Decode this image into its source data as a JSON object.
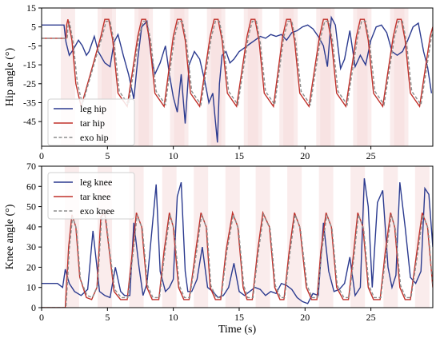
{
  "chart_data": [
    {
      "type": "line",
      "name": "hip-panel",
      "title": "",
      "xlabel": "",
      "ylabel": "Hip angle (°)",
      "xlim": [
        0,
        29.7
      ],
      "ylim": [
        -58,
        15
      ],
      "xticks": [
        0,
        5,
        10,
        15,
        20,
        25
      ],
      "yticks": [
        15,
        5,
        -5,
        -15,
        -25,
        -35,
        -45
      ],
      "legend": "lower-left",
      "grid": false,
      "series": [
        {
          "name": "leg hip",
          "color": "#2b3a8f",
          "dash": "solid",
          "x": [
            0,
            0.2,
            1.7,
            1.85,
            2.1,
            2.4,
            2.8,
            3.1,
            3.4,
            3.6,
            4.0,
            4.3,
            4.8,
            5.2,
            5.5,
            5.8,
            6.2,
            6.6,
            7.0,
            7.3,
            7.6,
            8.0,
            8.3,
            8.6,
            9.0,
            9.4,
            9.7,
            10.0,
            10.3,
            10.6,
            10.9,
            11.2,
            11.6,
            12.0,
            12.4,
            12.7,
            13.0,
            13.2,
            13.35,
            13.5,
            13.7,
            14.0,
            14.3,
            14.6,
            15.0,
            15.4,
            15.8,
            16.2,
            16.6,
            17.0,
            17.4,
            17.8,
            18.2,
            18.6,
            19.0,
            19.4,
            19.8,
            20.2,
            20.6,
            21.0,
            21.4,
            21.7,
            22.0,
            22.3,
            22.7,
            23.0,
            23.4,
            23.8,
            24.2,
            24.6,
            25.0,
            25.4,
            25.8,
            26.2,
            26.6,
            27.0,
            27.4,
            27.8,
            28.2,
            28.6,
            29.0,
            29.3,
            29.6
          ],
          "y": [
            6,
            6,
            6,
            -3,
            -10,
            -7,
            -2,
            -5,
            -10,
            -8,
            0,
            -8,
            -14,
            -16,
            -3,
            1,
            -10,
            -20,
            -33,
            -12,
            5,
            8,
            -10,
            -20,
            -14,
            -5,
            -20,
            -32,
            -40,
            -20,
            -46,
            -15,
            -8,
            -12,
            -24,
            -35,
            -30,
            -45,
            -56,
            -25,
            -10,
            -8,
            -14,
            -12,
            -8,
            -6,
            -4,
            -2,
            0,
            -1,
            1,
            0,
            1,
            -2,
            2,
            3,
            5,
            6,
            4,
            0,
            -5,
            -16,
            10,
            6,
            -17,
            -12,
            3,
            -16,
            -10,
            -15,
            -2,
            5,
            6,
            2,
            -8,
            -10,
            -8,
            -2,
            5,
            7,
            -8,
            -16,
            -30
          ]
        },
        {
          "name": "tar hip",
          "color": "#c0302a",
          "dash": "solid",
          "x": [
            0,
            1.85,
            1.9,
            2.0,
            2.3,
            2.6,
            3.0,
            3.7,
            4.5,
            4.8,
            5.1,
            5.4,
            5.8,
            6.5,
            7.3,
            7.6,
            7.9,
            8.2,
            8.6,
            9.3,
            10.0,
            10.3,
            10.6,
            10.9,
            11.3,
            12.0,
            12.8,
            13.1,
            13.4,
            13.7,
            14.1,
            14.8,
            15.6,
            15.9,
            16.2,
            16.5,
            16.9,
            17.6,
            18.3,
            18.6,
            18.9,
            19.2,
            19.6,
            20.3,
            21.1,
            21.4,
            21.7,
            22.0,
            22.4,
            23.1,
            23.9,
            24.2,
            24.5,
            24.8,
            25.2,
            25.9,
            26.7,
            27.0,
            27.3,
            27.6,
            28.0,
            28.7,
            29.5,
            29.7
          ],
          "y": [
            -1,
            -1,
            6,
            9,
            -2,
            -25,
            -37,
            -20,
            0,
            9,
            9,
            -2,
            -30,
            -37,
            0,
            9,
            9,
            -2,
            -30,
            -37,
            0,
            9,
            9,
            -2,
            -30,
            -37,
            0,
            9,
            9,
            -2,
            -30,
            -37,
            0,
            9,
            9,
            -2,
            -30,
            -37,
            0,
            9,
            9,
            -2,
            -30,
            -37,
            0,
            9,
            9,
            -2,
            -30,
            -37,
            0,
            9,
            9,
            -2,
            -30,
            -37,
            0,
            9,
            9,
            -2,
            -30,
            -37,
            0,
            5
          ]
        },
        {
          "name": "exo hip",
          "color": "#8c8c8c",
          "dash": "dashed",
          "x": [
            0,
            1.95,
            2.0,
            2.1,
            2.4,
            2.7,
            3.1,
            3.8,
            4.6,
            4.9,
            5.2,
            5.5,
            5.9,
            6.6,
            7.4,
            7.7,
            8.0,
            8.3,
            8.7,
            9.4,
            10.1,
            10.4,
            10.7,
            11.0,
            11.4,
            12.1,
            12.9,
            13.2,
            13.5,
            13.8,
            14.2,
            14.9,
            15.7,
            16.0,
            16.3,
            16.6,
            17.0,
            17.7,
            18.4,
            18.7,
            19.0,
            19.3,
            19.7,
            20.4,
            21.2,
            21.5,
            21.8,
            22.1,
            22.5,
            23.2,
            24.0,
            24.3,
            24.6,
            24.9,
            25.3,
            26.0,
            26.8,
            27.1,
            27.4,
            27.7,
            28.1,
            28.8,
            29.6,
            29.7
          ],
          "y": [
            -1,
            -1,
            5,
            8,
            -3,
            -24,
            -36,
            -19,
            0,
            8,
            8,
            -3,
            -29,
            -36,
            0,
            8,
            8,
            -3,
            -29,
            -36,
            0,
            8,
            8,
            -3,
            -29,
            -36,
            0,
            8,
            8,
            -3,
            -29,
            -36,
            0,
            8,
            8,
            -3,
            -29,
            -36,
            0,
            8,
            8,
            -3,
            -29,
            -36,
            0,
            8,
            8,
            -3,
            -29,
            -36,
            0,
            8,
            8,
            -3,
            -29,
            -36,
            0,
            8,
            8,
            -3,
            -29,
            -36,
            0,
            2
          ]
        }
      ]
    },
    {
      "type": "line",
      "name": "knee-panel",
      "title": "",
      "xlabel": "Time (s)",
      "ylabel": "Knee angle (°)",
      "xlim": [
        0,
        29.7
      ],
      "ylim": [
        0,
        70
      ],
      "xticks": [
        0,
        5,
        10,
        15,
        20,
        25
      ],
      "yticks": [
        0,
        10,
        20,
        30,
        40,
        50,
        60,
        70
      ],
      "legend": "upper-left",
      "grid": false,
      "series": [
        {
          "name": "leg knee",
          "color": "#2b3a8f",
          "dash": "solid",
          "x": [
            0,
            0.5,
            1.2,
            1.6,
            1.8,
            2.1,
            2.5,
            3.0,
            3.5,
            3.9,
            4.2,
            4.4,
            4.8,
            5.2,
            5.6,
            6.0,
            6.3,
            6.7,
            7.0,
            7.4,
            7.7,
            8.0,
            8.4,
            8.7,
            9.0,
            9.4,
            9.7,
            10.0,
            10.3,
            10.6,
            10.9,
            11.1,
            11.4,
            11.8,
            12.2,
            12.6,
            13.0,
            13.4,
            13.8,
            14.2,
            14.6,
            15.0,
            15.4,
            15.8,
            16.2,
            16.6,
            17.0,
            17.4,
            17.8,
            18.2,
            18.6,
            19.0,
            19.4,
            19.8,
            20.2,
            20.6,
            21.0,
            21.4,
            21.8,
            22.2,
            22.6,
            23.0,
            23.4,
            23.8,
            24.2,
            24.5,
            24.8,
            25.1,
            25.5,
            25.9,
            26.3,
            26.6,
            26.9,
            27.2,
            27.6,
            28.0,
            28.4,
            28.8,
            29.1,
            29.4,
            29.7
          ],
          "y": [
            12,
            12,
            12,
            10,
            19,
            12,
            8,
            6,
            9,
            38,
            20,
            8,
            6,
            5,
            20,
            8,
            6,
            6,
            42,
            20,
            6,
            12,
            40,
            61,
            18,
            8,
            10,
            14,
            55,
            62,
            18,
            8,
            8,
            14,
            30,
            10,
            8,
            5,
            6,
            10,
            22,
            8,
            6,
            8,
            10,
            9,
            6,
            8,
            7,
            12,
            11,
            9,
            5,
            3,
            2,
            7,
            6,
            42,
            18,
            8,
            9,
            12,
            25,
            6,
            10,
            64,
            50,
            10,
            52,
            58,
            20,
            10,
            16,
            62,
            40,
            15,
            12,
            18,
            59,
            56,
            30
          ]
        },
        {
          "name": "tar knee",
          "color": "#c0302a",
          "dash": "solid",
          "x": [
            0,
            1.8,
            1.9,
            2.05,
            2.3,
            2.6,
            2.9,
            3.4,
            3.8,
            4.2,
            4.5,
            4.8,
            5.1,
            5.5,
            6.0,
            6.5,
            6.9,
            7.2,
            7.6,
            8.0,
            8.4,
            8.9,
            9.3,
            9.7,
            10.0,
            10.4,
            10.8,
            11.2,
            11.7,
            12.1,
            12.5,
            12.8,
            13.2,
            13.6,
            14.0,
            14.5,
            14.9,
            15.3,
            15.6,
            16.0,
            16.4,
            16.8,
            17.3,
            17.7,
            18.1,
            18.4,
            18.8,
            19.2,
            19.6,
            20.1,
            20.5,
            20.9,
            21.2,
            21.6,
            22.0,
            22.4,
            22.9,
            23.3,
            23.7,
            24.0,
            24.4,
            24.8,
            25.2,
            25.7,
            26.1,
            26.5,
            26.8,
            27.2,
            27.6,
            28.0,
            28.5,
            28.9,
            29.3,
            29.7
          ],
          "y": [
            0,
            0,
            12,
            30,
            46,
            40,
            15,
            5,
            4,
            10,
            45,
            47,
            30,
            8,
            4,
            4,
            28,
            47,
            40,
            10,
            4,
            4,
            28,
            47,
            40,
            10,
            4,
            4,
            28,
            47,
            40,
            10,
            4,
            4,
            28,
            47,
            40,
            10,
            4,
            4,
            28,
            47,
            40,
            10,
            4,
            4,
            28,
            47,
            40,
            10,
            4,
            4,
            28,
            47,
            40,
            10,
            4,
            4,
            28,
            47,
            40,
            10,
            4,
            4,
            28,
            47,
            40,
            10,
            4,
            4,
            28,
            47,
            40,
            10
          ]
        },
        {
          "name": "exo knee",
          "color": "#8c8c8c",
          "dash": "dashed",
          "x": [
            0,
            1.85,
            1.95,
            2.1,
            2.35,
            2.65,
            2.95,
            3.45,
            3.85,
            4.25,
            4.55,
            4.85,
            5.15,
            5.55,
            6.05,
            6.55,
            6.95,
            7.25,
            7.65,
            8.05,
            8.45,
            8.95,
            9.35,
            9.75,
            10.05,
            10.45,
            10.85,
            11.25,
            11.75,
            12.15,
            12.55,
            12.85,
            13.25,
            13.65,
            14.05,
            14.55,
            14.95,
            15.35,
            15.65,
            16.05,
            16.45,
            16.85,
            17.35,
            17.75,
            18.15,
            18.45,
            18.85,
            19.25,
            19.65,
            20.15,
            20.55,
            20.95,
            21.25,
            21.65,
            22.05,
            22.45,
            22.95,
            23.35,
            23.75,
            24.05,
            24.45,
            24.85,
            25.25,
            25.75,
            26.15,
            26.55,
            26.85,
            27.25,
            27.65,
            28.05,
            28.55,
            28.95,
            29.35,
            29.7
          ],
          "y": [
            0,
            0,
            11,
            29,
            45,
            39,
            14,
            6,
            5,
            11,
            44,
            46,
            29,
            9,
            5,
            5,
            27,
            46,
            39,
            11,
            5,
            5,
            27,
            46,
            39,
            11,
            5,
            5,
            27,
            46,
            39,
            11,
            5,
            5,
            27,
            46,
            39,
            11,
            5,
            5,
            27,
            46,
            39,
            11,
            5,
            5,
            27,
            46,
            39,
            11,
            5,
            5,
            27,
            46,
            39,
            11,
            5,
            5,
            27,
            46,
            39,
            11,
            5,
            5,
            27,
            46,
            39,
            11,
            5,
            5,
            27,
            46,
            39,
            11
          ]
        }
      ]
    }
  ]
}
